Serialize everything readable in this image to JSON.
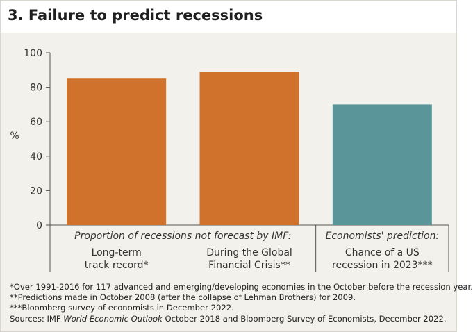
{
  "title": "3. Failure to predict recessions",
  "chart_data": {
    "type": "bar",
    "categories": [
      [
        "Long-term",
        "track record*"
      ],
      [
        "During the Global",
        "Financial Crisis**"
      ],
      [
        "Chance of a US",
        "recession in 2023***"
      ]
    ],
    "values": [
      85,
      89,
      70
    ],
    "colors": [
      "#d0722b",
      "#d0722b",
      "#5a9599"
    ],
    "group_labels": [
      "Proportion of recessions not forecast by IMF:",
      "Economists' prediction:"
    ],
    "ylabel": "%",
    "ylim": [
      0,
      100
    ],
    "yticks": [
      0,
      20,
      40,
      60,
      80,
      100
    ],
    "grid": false
  },
  "footnotes": [
    "*Over 1991-2016 for 117 advanced and emerging/developing economies in the October before the recession year.",
    "**Predictions made in October 2008 (after the collapse of Lehman Brothers) for 2009.",
    "***Bloomberg survey of economists in December 2022."
  ],
  "sources": {
    "prefix": "Sources: IMF ",
    "italic": "World Economic Outlook",
    "suffix": " October 2018 and Bloomberg Survey of Economists, December 2022."
  }
}
